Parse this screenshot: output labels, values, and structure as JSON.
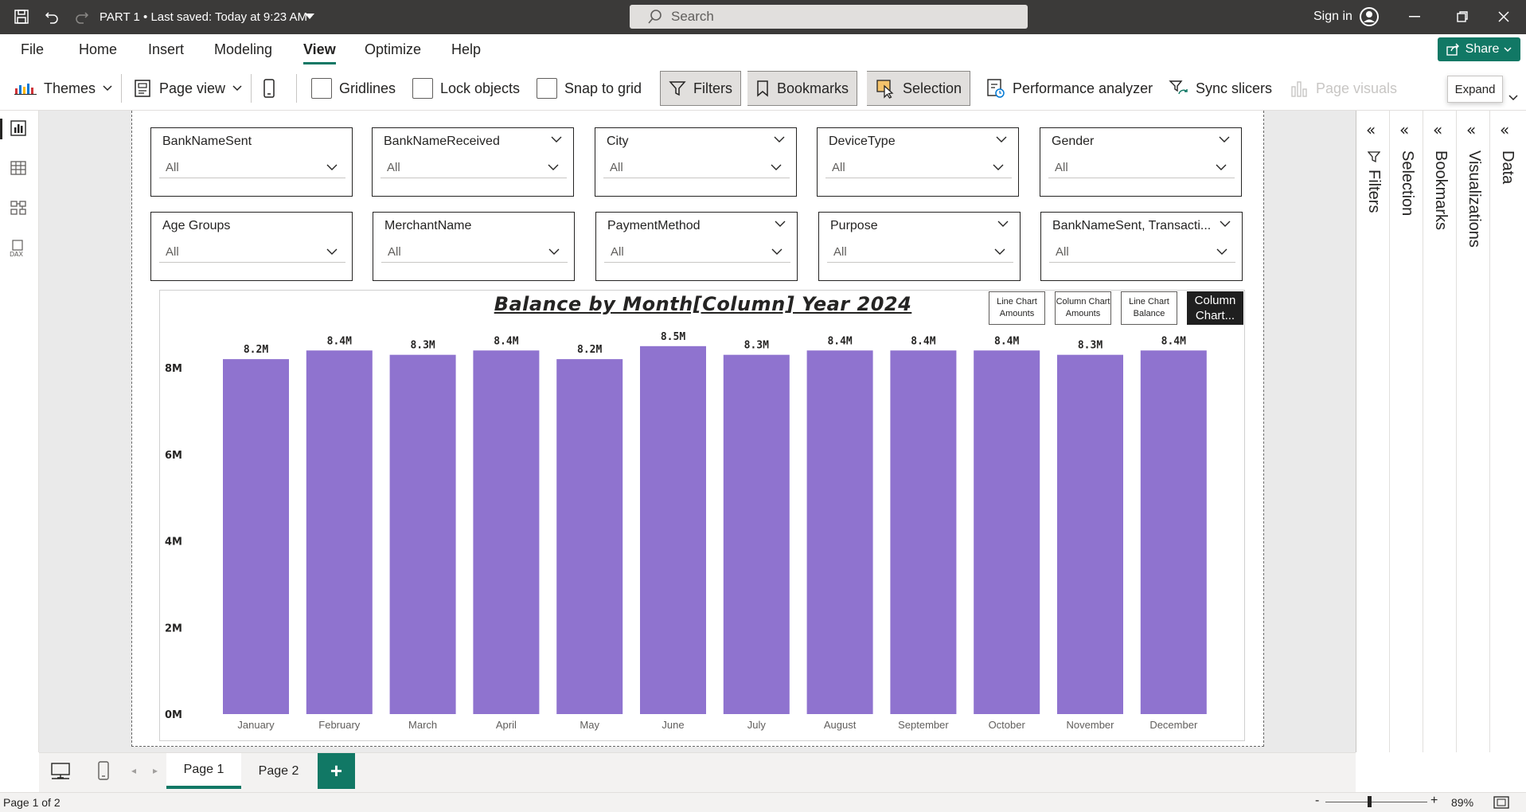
{
  "titlebar": {
    "doc_title": "PART 1 • Last saved: Today at 9:23 AM",
    "search_placeholder": "Search",
    "sign_in": "Sign in"
  },
  "menu": {
    "items": [
      "File",
      "Home",
      "Insert",
      "Modeling",
      "View",
      "Optimize",
      "Help"
    ],
    "active": "View",
    "share": "Share"
  },
  "ribbon": {
    "themes": "Themes",
    "page_view": "Page view",
    "gridlines": "Gridlines",
    "lock_objects": "Lock objects",
    "snap_to_grid": "Snap to grid",
    "filters": "Filters",
    "bookmarks": "Bookmarks",
    "selection": "Selection",
    "performance_analyzer": "Performance analyzer",
    "sync_slicers": "Sync slicers",
    "page_visuals": "Page visuals",
    "tooltip": "Expand"
  },
  "slicers": [
    {
      "title": "BankNameSent",
      "value": "All"
    },
    {
      "title": "BankNameReceived",
      "value": "All"
    },
    {
      "title": "City",
      "value": "All"
    },
    {
      "title": "DeviceType",
      "value": "All"
    },
    {
      "title": "Gender",
      "value": "All"
    },
    {
      "title": "Age Groups",
      "value": "All"
    },
    {
      "title": "MerchantName",
      "value": "All"
    },
    {
      "title": "PaymentMethod",
      "value": "All"
    },
    {
      "title": "Purpose",
      "value": "All"
    },
    {
      "title": "BankNameSent, Transacti...",
      "value": "All"
    }
  ],
  "bookmark_buttons": [
    {
      "label": "Line Chart Amounts",
      "active": false
    },
    {
      "label": "Column Chart Amounts",
      "active": false
    },
    {
      "label": "Line Chart Balance",
      "active": false
    },
    {
      "label": "Column Chart...",
      "active": true
    }
  ],
  "chart_data": {
    "type": "bar",
    "title": "Balance by Month[Column] Year 2024",
    "categories": [
      "January",
      "February",
      "March",
      "April",
      "May",
      "June",
      "July",
      "August",
      "September",
      "October",
      "November",
      "December"
    ],
    "values": [
      8.2,
      8.4,
      8.3,
      8.4,
      8.2,
      8.5,
      8.3,
      8.4,
      8.4,
      8.4,
      8.3,
      8.4
    ],
    "data_labels": [
      "8.2M",
      "8.4M",
      "8.3M",
      "8.4M",
      "8.2M",
      "8.5M",
      "8.3M",
      "8.4M",
      "8.4M",
      "8.4M",
      "8.3M",
      "8.4M"
    ],
    "unit": "M",
    "y_ticks": [
      0,
      2,
      4,
      6,
      8
    ],
    "y_tick_labels": [
      "0M",
      "2M",
      "4M",
      "6M",
      "8M"
    ],
    "ylim": [
      0,
      8.5
    ],
    "xlabel": "",
    "ylabel": "",
    "grid": false,
    "bar_color": "#8f73cf"
  },
  "panes": [
    "Filters",
    "Selection",
    "Bookmarks",
    "Visualizations",
    "Data"
  ],
  "pages": {
    "tabs": [
      "Page 1",
      "Page 2"
    ],
    "active": "Page 1",
    "add": "+"
  },
  "status": {
    "page_info": "Page 1 of 2",
    "zoom": "89%",
    "zoom_minus": "-",
    "zoom_plus": "+"
  },
  "colors": {
    "accent": "#117865",
    "titlebar": "#3b3a39",
    "bar": "#8f73cf"
  }
}
